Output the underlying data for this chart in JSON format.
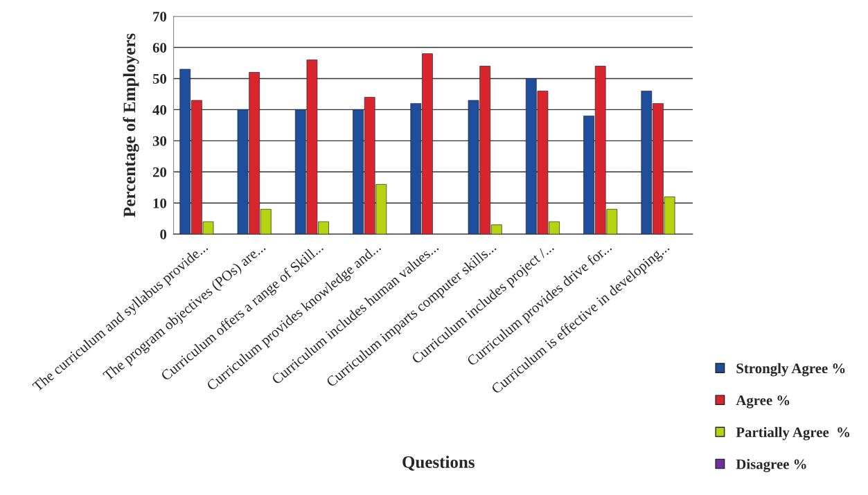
{
  "chart_data": {
    "type": "bar",
    "xlabel": "Questions",
    "ylabel": "Percentage of Employers",
    "categories": [
      "The curriculum and syllabus provide...",
      "The program objectives (POs) are...",
      "Curriculum offers a range of Skill...",
      "Curriculum provides knowledge and...",
      "Curriculum includes human values...",
      "Curriculum imparts computer skills...",
      "Curriculum includes project /...",
      "Curriculum provides drive for...",
      "Curriculum is effective in developing..."
    ],
    "series": [
      {
        "name": "Strongly Agree %",
        "color": "#1f4e9c",
        "values": [
          53,
          40,
          40,
          40,
          42,
          43,
          50,
          38,
          46
        ]
      },
      {
        "name": "Agree %",
        "color": "#d9262e",
        "values": [
          43,
          52,
          56,
          44,
          58,
          54,
          46,
          54,
          42
        ]
      },
      {
        "name": "Partially Agree  %",
        "color": "#b5d40f",
        "values": [
          4,
          8,
          4,
          16,
          null,
          3,
          4,
          8,
          12
        ]
      },
      {
        "name": "Disagree %",
        "color": "#7030a0",
        "values": [
          null,
          null,
          null,
          null,
          null,
          null,
          null,
          null,
          null
        ]
      }
    ],
    "ylim": [
      0,
      70
    ],
    "yticks": [
      0,
      10,
      20,
      30,
      40,
      50,
      60,
      70
    ],
    "grid": "y",
    "legend": "bottom right"
  }
}
